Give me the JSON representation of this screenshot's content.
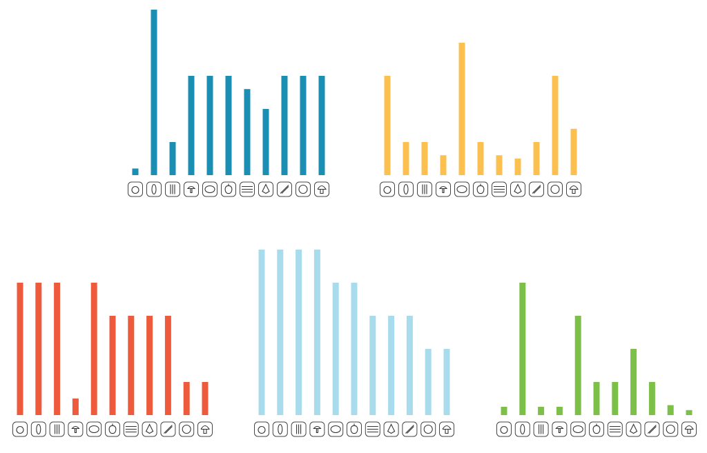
{
  "chart_data": [
    {
      "type": "bar",
      "categories": [
        null,
        null,
        null,
        null,
        null,
        null,
        null,
        null,
        null,
        null,
        null
      ],
      "values": [
        0.2,
        5,
        1,
        3,
        3,
        3,
        2.6,
        2,
        3,
        3,
        3
      ],
      "color": "#1a8fb3"
    },
    {
      "type": "bar",
      "categories": [
        null,
        null,
        null,
        null,
        null,
        null,
        null,
        null,
        null,
        null,
        null
      ],
      "values": [
        3,
        1,
        1,
        0.6,
        4,
        1,
        0.6,
        0.5,
        1,
        3,
        1.4
      ],
      "color": "#fbc04f"
    },
    {
      "type": "bar",
      "categories": [
        null,
        null,
        null,
        null,
        null,
        null,
        null,
        null,
        null,
        null,
        null
      ],
      "values": [
        4,
        4,
        4,
        0.5,
        4,
        3,
        3,
        3,
        3,
        1,
        1
      ],
      "color": "#ee5a3c"
    },
    {
      "type": "bar",
      "categories": [
        null,
        null,
        null,
        null,
        null,
        null,
        null,
        null,
        null,
        null,
        null
      ],
      "values": [
        5,
        5,
        5,
        5,
        4,
        4,
        3,
        3,
        3,
        2,
        2
      ],
      "color": "#a8dcec"
    },
    {
      "type": "bar",
      "categories": [
        null,
        null,
        null,
        null,
        null,
        null,
        null,
        null,
        null,
        null,
        null
      ],
      "values": [
        0.25,
        4,
        0.25,
        0.25,
        3,
        1,
        1,
        2,
        1,
        0.3,
        0.15
      ],
      "color": "#7cc04a"
    }
  ]
}
